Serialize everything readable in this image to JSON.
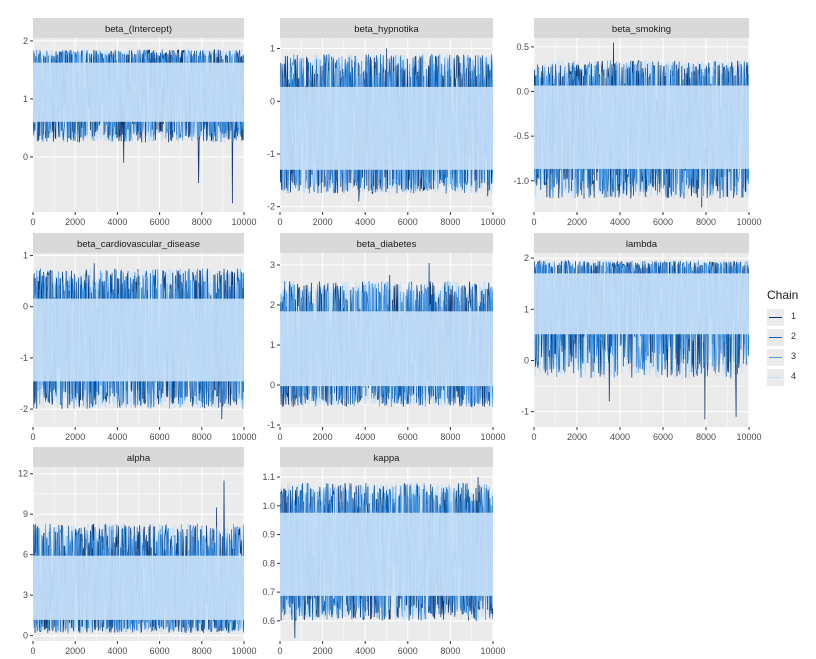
{
  "chart_data": [
    {
      "type": "line",
      "title": "beta_(Intercept)",
      "x_range": [
        0,
        10000
      ],
      "y_range": [
        -0.95,
        2.05
      ],
      "yticks": [
        0,
        1,
        2
      ],
      "xticks": [
        0,
        2000,
        4000,
        6000,
        8000,
        10000
      ],
      "band": [
        0.25,
        1.85
      ],
      "trace": {
        "center": 1.2,
        "low": 0.5,
        "high": 1.7
      },
      "spikes": [
        [
          4300,
          -0.1
        ],
        [
          7850,
          -0.45
        ],
        [
          9450,
          -0.8
        ]
      ]
    },
    {
      "type": "line",
      "title": "beta_hypnotika",
      "x_range": [
        0,
        10000
      ],
      "y_range": [
        -2.1,
        1.2
      ],
      "yticks": [
        -2,
        -1,
        0,
        1
      ],
      "xticks": [
        0,
        2000,
        4000,
        6000,
        8000,
        10000
      ],
      "band": [
        -1.75,
        0.9
      ],
      "trace": {
        "center": -0.45,
        "low": -1.45,
        "high": 0.4
      },
      "spikes": [
        [
          5000,
          1.0
        ],
        [
          3700,
          -1.9
        ],
        [
          9750,
          -1.8
        ]
      ]
    },
    {
      "type": "line",
      "title": "beta_smoking",
      "x_range": [
        0,
        10000
      ],
      "y_range": [
        -1.35,
        0.6
      ],
      "yticks": [
        -1.0,
        -0.5,
        0.0,
        0.5
      ],
      "xticks": [
        0,
        2000,
        4000,
        6000,
        8000,
        10000
      ],
      "band": [
        -1.2,
        0.35
      ],
      "trace": {
        "center": -0.4,
        "low": -0.95,
        "high": 0.15
      },
      "spikes": [
        [
          3700,
          0.55
        ],
        [
          7800,
          -1.3
        ]
      ]
    },
    {
      "type": "line",
      "title": "beta_cardiovascular_disease",
      "x_range": [
        0,
        10000
      ],
      "y_range": [
        -2.35,
        1.05
      ],
      "yticks": [
        -2,
        -1,
        0,
        1
      ],
      "xticks": [
        0,
        2000,
        4000,
        6000,
        8000,
        10000
      ],
      "band": [
        -2.0,
        0.75
      ],
      "trace": {
        "center": -0.65,
        "low": -1.6,
        "high": 0.3
      },
      "spikes": [
        [
          2900,
          0.85
        ],
        [
          8950,
          -2.2
        ]
      ]
    },
    {
      "type": "line",
      "title": "beta_diabetes",
      "x_range": [
        0,
        10000
      ],
      "y_range": [
        -1.05,
        3.3
      ],
      "yticks": [
        -1,
        0,
        1,
        2,
        3
      ],
      "xticks": [
        0,
        2000,
        4000,
        6000,
        8000,
        10000
      ],
      "band": [
        -0.55,
        2.6
      ],
      "trace": {
        "center": 0.95,
        "low": -0.2,
        "high": 2.0
      },
      "spikes": [
        [
          7000,
          3.05
        ],
        [
          5150,
          2.75
        ]
      ]
    },
    {
      "type": "line",
      "title": "lambda",
      "x_range": [
        0,
        10000
      ],
      "y_range": [
        -1.3,
        2.1
      ],
      "yticks": [
        -1,
        0,
        1,
        2
      ],
      "xticks": [
        0,
        2000,
        4000,
        6000,
        8000,
        10000
      ],
      "band": [
        -0.35,
        1.95
      ],
      "trace": {
        "center": 1.15,
        "low": 0.4,
        "high": 1.8
      },
      "spikes": [
        [
          7950,
          -1.15
        ],
        [
          9400,
          -1.1
        ],
        [
          3500,
          -0.8
        ]
      ]
    },
    {
      "type": "line",
      "title": "alpha",
      "x_range": [
        0,
        10000
      ],
      "y_range": [
        -0.4,
        12.5
      ],
      "yticks": [
        0,
        3,
        6,
        9,
        12
      ],
      "xticks": [
        0,
        2000,
        4000,
        6000,
        8000,
        10000
      ],
      "band": [
        0.2,
        8.3
      ],
      "trace": {
        "center": 3.8,
        "low": 0.7,
        "high": 6.3
      },
      "spikes": [
        [
          9050,
          11.5
        ],
        [
          8700,
          9.5
        ],
        [
          7450,
          8.2
        ]
      ]
    },
    {
      "type": "line",
      "title": "kappa",
      "x_range": [
        0,
        10000
      ],
      "y_range": [
        0.53,
        1.135
      ],
      "yticks": [
        0.6,
        0.7,
        0.8,
        0.9,
        1.0,
        1.1
      ],
      "xticks": [
        0,
        2000,
        4000,
        6000,
        8000,
        10000
      ],
      "band": [
        0.6,
        1.08
      ],
      "trace": {
        "center": 0.84,
        "low": 0.66,
        "high": 1.0
      },
      "spikes": [
        [
          700,
          0.54
        ],
        [
          9300,
          1.1
        ]
      ]
    }
  ],
  "legend": {
    "title": "Chain",
    "items": [
      {
        "label": "1",
        "color": "#08306b"
      },
      {
        "label": "2",
        "color": "#0c5fb3"
      },
      {
        "label": "3",
        "color": "#4c9be8"
      },
      {
        "label": "4",
        "color": "#c6e0f9"
      }
    ]
  },
  "colors": {
    "panel_bg": "#ebebeb",
    "strip_bg": "#d9d9d9",
    "grid": "#ffffff",
    "axis_text": "#4d4d4d",
    "title_text": "#1a1a1a"
  }
}
